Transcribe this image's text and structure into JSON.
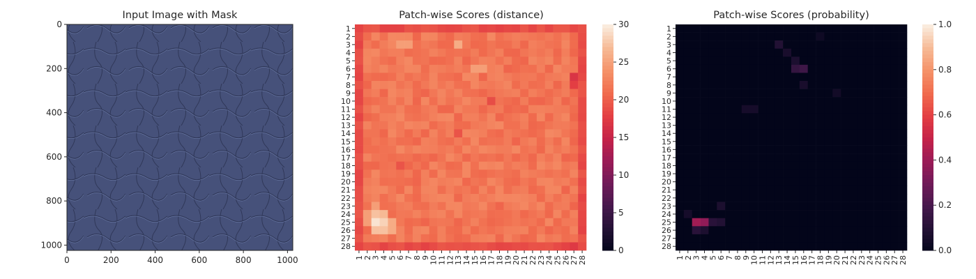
{
  "chart_data": [
    {
      "type": "image",
      "title": "Input Image with Mask",
      "x_ticks": [
        0,
        200,
        400,
        600,
        800,
        1000
      ],
      "y_ticks": [
        0,
        200,
        400,
        600,
        800,
        1000
      ],
      "xlim": [
        0,
        1024
      ],
      "ylim": [
        1024,
        0
      ],
      "image_description_colors": {
        "base": "#46517a",
        "dark": "#2f3758",
        "light": "#6a7aa8"
      }
    },
    {
      "type": "heatmap",
      "title": "Patch-wise Scores (distance)",
      "rows": 28,
      "cols": 28,
      "row_labels": [
        "1",
        "2",
        "3",
        "4",
        "5",
        "6",
        "7",
        "8",
        "9",
        "10",
        "11",
        "12",
        "13",
        "14",
        "15",
        "16",
        "17",
        "18",
        "19",
        "20",
        "21",
        "22",
        "23",
        "24",
        "25",
        "26",
        "27",
        "28"
      ],
      "col_labels": [
        "1",
        "2",
        "3",
        "4",
        "5",
        "6",
        "7",
        "8",
        "9",
        "10",
        "11",
        "12",
        "13",
        "14",
        "15",
        "16",
        "17",
        "18",
        "19",
        "20",
        "21",
        "22",
        "23",
        "24",
        "25",
        "26",
        "27",
        "28"
      ],
      "vmin": 0,
      "vmax": 30,
      "colorbar_ticks": [
        0,
        5,
        10,
        15,
        20,
        25,
        30
      ],
      "colormap": "rocket",
      "base_value": 22,
      "border_value": 19,
      "overrides": [
        {
          "row": 25,
          "col": 3,
          "value": 29.5
        },
        {
          "row": 25,
          "col": 4,
          "value": 28.5
        },
        {
          "row": 24,
          "col": 3,
          "value": 27.5
        },
        {
          "row": 24,
          "col": 4,
          "value": 27
        },
        {
          "row": 26,
          "col": 3,
          "value": 27.5
        },
        {
          "row": 26,
          "col": 4,
          "value": 27.5
        },
        {
          "row": 25,
          "col": 5,
          "value": 26
        },
        {
          "row": 26,
          "col": 5,
          "value": 26
        },
        {
          "row": 24,
          "col": 2,
          "value": 25
        },
        {
          "row": 25,
          "col": 2,
          "value": 25
        },
        {
          "row": 23,
          "col": 3,
          "value": 25
        },
        {
          "row": 3,
          "col": 13,
          "value": 26
        },
        {
          "row": 3,
          "col": 6,
          "value": 25
        },
        {
          "row": 3,
          "col": 7,
          "value": 25
        },
        {
          "row": 6,
          "col": 15,
          "value": 25
        },
        {
          "row": 6,
          "col": 16,
          "value": 25
        },
        {
          "row": 7,
          "col": 27,
          "value": 17
        },
        {
          "row": 8,
          "col": 27,
          "value": 18
        },
        {
          "row": 10,
          "col": 17,
          "value": 19
        },
        {
          "row": 14,
          "col": 13,
          "value": 19.5
        },
        {
          "row": 18,
          "col": 6,
          "value": 19.5
        },
        {
          "row": 19,
          "col": 1,
          "value": 18.5
        },
        {
          "row": 28,
          "col": 27,
          "value": 17.5
        }
      ]
    },
    {
      "type": "heatmap",
      "title": "Patch-wise Scores (probability)",
      "rows": 28,
      "cols": 28,
      "row_labels": [
        "1",
        "2",
        "3",
        "4",
        "5",
        "6",
        "7",
        "8",
        "9",
        "10",
        "11",
        "12",
        "13",
        "14",
        "15",
        "16",
        "17",
        "18",
        "19",
        "20",
        "21",
        "22",
        "23",
        "24",
        "25",
        "26",
        "27",
        "28"
      ],
      "col_labels": [
        "1",
        "2",
        "3",
        "4",
        "5",
        "6",
        "7",
        "8",
        "9",
        "10",
        "11",
        "12",
        "13",
        "14",
        "15",
        "16",
        "17",
        "18",
        "19",
        "20",
        "21",
        "22",
        "23",
        "24",
        "25",
        "26",
        "27",
        "28"
      ],
      "vmin": 0.0,
      "vmax": 1.0,
      "colorbar_ticks": [
        0.0,
        0.2,
        0.4,
        0.6,
        0.8,
        1.0
      ],
      "colorbar_tick_labels": [
        "0.0",
        "0.2",
        "0.4",
        "0.6",
        "0.8",
        "1.0"
      ],
      "colormap": "rocket",
      "base_value": 0.0,
      "overrides": [
        {
          "row": 25,
          "col": 3,
          "value": 0.42
        },
        {
          "row": 25,
          "col": 4,
          "value": 0.38
        },
        {
          "row": 25,
          "col": 5,
          "value": 0.12
        },
        {
          "row": 25,
          "col": 6,
          "value": 0.1
        },
        {
          "row": 26,
          "col": 3,
          "value": 0.12
        },
        {
          "row": 26,
          "col": 4,
          "value": 0.08
        },
        {
          "row": 24,
          "col": 2,
          "value": 0.06
        },
        {
          "row": 23,
          "col": 6,
          "value": 0.08
        },
        {
          "row": 6,
          "col": 15,
          "value": 0.15
        },
        {
          "row": 6,
          "col": 16,
          "value": 0.18
        },
        {
          "row": 5,
          "col": 15,
          "value": 0.08
        },
        {
          "row": 3,
          "col": 13,
          "value": 0.1
        },
        {
          "row": 4,
          "col": 14,
          "value": 0.07
        },
        {
          "row": 8,
          "col": 16,
          "value": 0.07
        },
        {
          "row": 11,
          "col": 9,
          "value": 0.06
        },
        {
          "row": 11,
          "col": 10,
          "value": 0.06
        },
        {
          "row": 9,
          "col": 20,
          "value": 0.05
        },
        {
          "row": 2,
          "col": 18,
          "value": 0.04
        }
      ]
    }
  ]
}
